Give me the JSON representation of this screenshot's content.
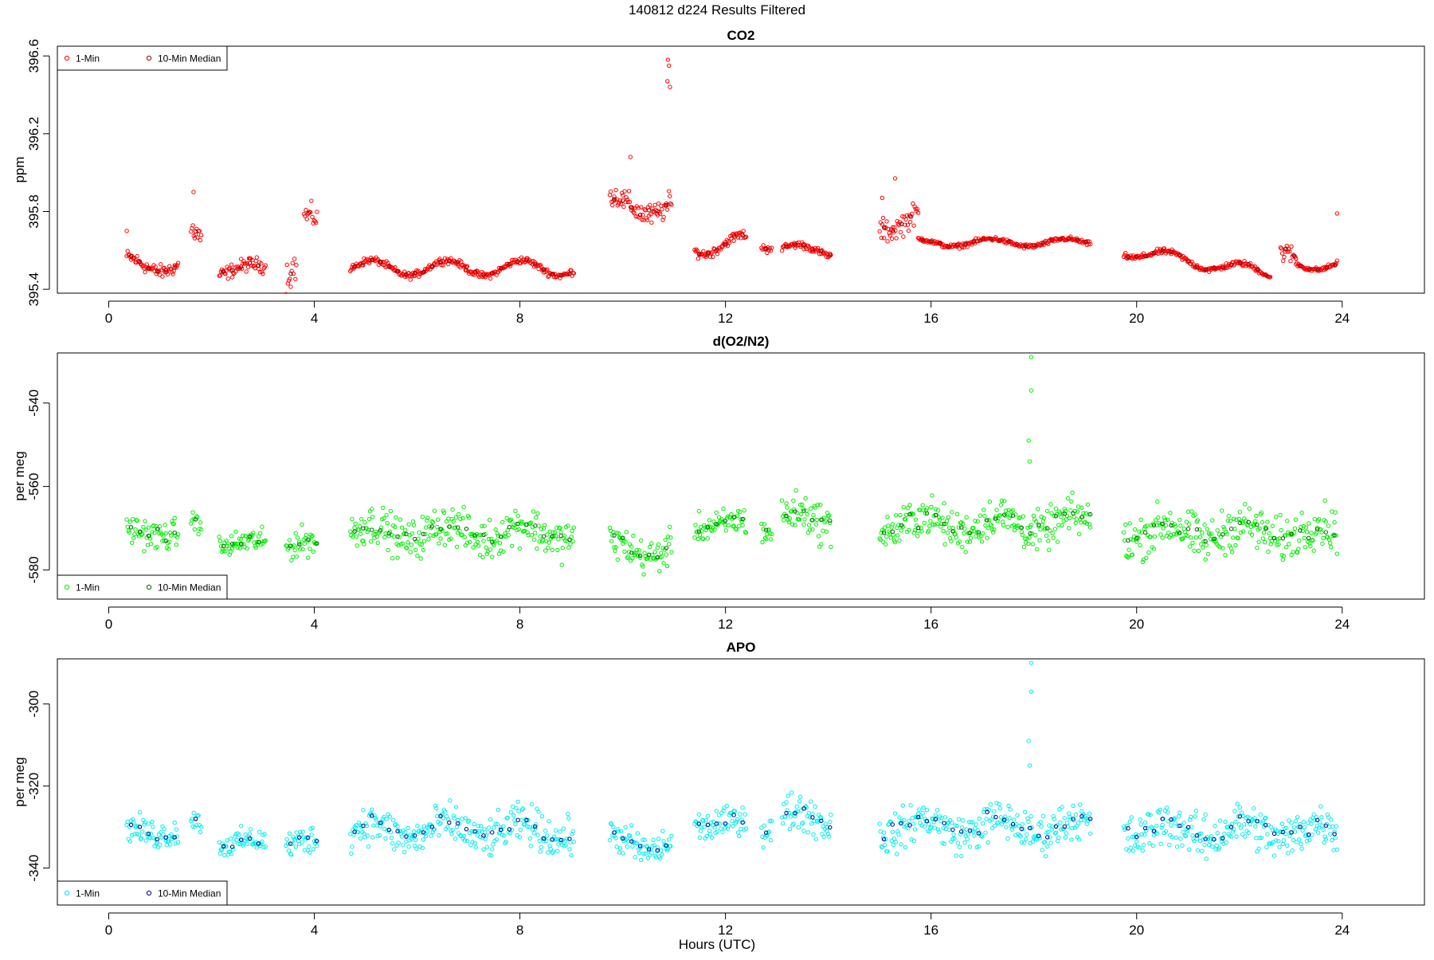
{
  "suptitle": "140812   d224   Results Filtered",
  "xlabel": "Hours (UTC)",
  "chart_data": [
    {
      "type": "scatter",
      "title": "CO2",
      "ylabel": "ppm",
      "xlim": [
        -1,
        25.6
      ],
      "ylim": [
        395.38,
        396.65
      ],
      "x_ticks": [
        0,
        4,
        8,
        12,
        16,
        20,
        24
      ],
      "y_ticks": [
        395.4,
        395.8,
        396.2,
        396.6
      ],
      "y_tick_labels": [
        "395.4",
        "395.8",
        "396.2",
        "396.6"
      ],
      "legend": {
        "position": "top-left",
        "entries": [
          "1-Min",
          "10-Min Median"
        ]
      },
      "colors": {
        "one_min": "#ff0000",
        "median": "#8b0000"
      },
      "series": [
        {
          "name": "1-Min",
          "segments": [
            {
              "x0": 0.35,
              "x1": 1.35,
              "base": 395.53,
              "amp": 0.04,
              "noise": 0.03,
              "spikes": [
                [
                  0.35,
                  395.7
                ]
              ]
            },
            {
              "x0": 1.6,
              "x1": 1.8,
              "base": 395.66,
              "amp": 0.06,
              "noise": 0.05,
              "spikes": [
                [
                  1.65,
                  395.9
                ]
              ]
            },
            {
              "x0": 2.15,
              "x1": 3.05,
              "base": 395.5,
              "amp": 0.03,
              "noise": 0.03
            },
            {
              "x0": 3.45,
              "x1": 3.65,
              "base": 395.5,
              "amp": 0.06,
              "noise": 0.07
            },
            {
              "x0": 3.8,
              "x1": 4.05,
              "base": 395.73,
              "amp": 0.05,
              "noise": 0.05
            },
            {
              "x0": 4.7,
              "x1": 9.05,
              "base": 395.51,
              "amp": 0.04,
              "noise": 0.015
            },
            {
              "x0": 9.75,
              "x1": 10.95,
              "base": 395.83,
              "amp": 0.05,
              "noise": 0.05,
              "spikes": [
                [
                  10.88,
                  396.58
                ],
                [
                  10.9,
                  396.55
                ],
                [
                  10.87,
                  396.47
                ],
                [
                  10.92,
                  396.44
                ],
                [
                  10.15,
                  396.08
                ]
              ]
            },
            {
              "x0": 11.4,
              "x1": 12.4,
              "base": 395.63,
              "amp": 0.05,
              "noise": 0.02
            },
            {
              "x0": 12.7,
              "x1": 12.9,
              "base": 395.64,
              "amp": 0.03,
              "noise": 0.02
            },
            {
              "x0": 13.1,
              "x1": 14.05,
              "base": 395.6,
              "amp": 0.03,
              "noise": 0.015
            },
            {
              "x0": 15.0,
              "x1": 15.75,
              "base": 395.75,
              "amp": 0.05,
              "noise": 0.05,
              "spikes": [
                [
                  15.05,
                  395.87
                ],
                [
                  15.3,
                  395.97
                ]
              ]
            },
            {
              "x0": 15.75,
              "x1": 19.1,
              "base": 395.64,
              "amp": 0.02,
              "noise": 0.01
            },
            {
              "x0": 19.75,
              "x1": 22.6,
              "base": 395.6,
              "amp": 0.03,
              "noise": 0.012,
              "trend": -0.12
            },
            {
              "x0": 22.8,
              "x1": 23.1,
              "base": 395.55,
              "amp": 0.04,
              "noise": 0.04
            },
            {
              "x0": 23.1,
              "x1": 23.9,
              "base": 395.53,
              "amp": 0.03,
              "noise": 0.01,
              "spikes": [
                [
                  23.9,
                  395.79
                ]
              ]
            }
          ]
        },
        {
          "name": "10-Min Median",
          "segments": []
        }
      ]
    },
    {
      "type": "scatter",
      "title": "d(O2/N2)",
      "ylabel": "per meg",
      "xlim": [
        -1,
        25.6
      ],
      "ylim": [
        -587,
        -528
      ],
      "x_ticks": [
        0,
        4,
        8,
        12,
        16,
        20,
        24
      ],
      "y_ticks": [
        -540,
        -560,
        -580
      ],
      "y_tick_labels": [
        "-540",
        "-560",
        "-580"
      ],
      "legend": {
        "position": "bottom-left",
        "entries": [
          "1-Min",
          "10-Min Median"
        ]
      },
      "colors": {
        "one_min": "#00ee00",
        "median": "#006400"
      },
      "series": [
        {
          "name": "1-Min",
          "segments": [
            {
              "x0": 0.35,
              "x1": 1.35,
              "base": -571,
              "amp": 1,
              "noise": 3
            },
            {
              "x0": 1.6,
              "x1": 1.8,
              "base": -569,
              "amp": 1,
              "noise": 2
            },
            {
              "x0": 2.15,
              "x1": 3.05,
              "base": -574,
              "amp": 1,
              "noise": 2.5
            },
            {
              "x0": 3.45,
              "x1": 4.05,
              "base": -574,
              "amp": 1,
              "noise": 3
            },
            {
              "x0": 4.7,
              "x1": 9.05,
              "base": -571,
              "amp": 2,
              "noise": 4
            },
            {
              "x0": 9.75,
              "x1": 10.95,
              "base": -575,
              "amp": 2,
              "noise": 3.5
            },
            {
              "x0": 11.4,
              "x1": 12.4,
              "base": -569,
              "amp": 1,
              "noise": 3
            },
            {
              "x0": 12.7,
              "x1": 12.9,
              "base": -570,
              "amp": 1,
              "noise": 3
            },
            {
              "x0": 13.1,
              "x1": 14.05,
              "base": -568,
              "amp": 2,
              "noise": 4
            },
            {
              "x0": 15.0,
              "x1": 19.1,
              "base": -569,
              "amp": 2,
              "noise": 4,
              "spikes": [
                [
                  17.95,
                  -529
                ],
                [
                  17.95,
                  -537
                ],
                [
                  17.9,
                  -549
                ],
                [
                  17.92,
                  -554
                ]
              ]
            },
            {
              "x0": 19.75,
              "x1": 23.9,
              "base": -571,
              "amp": 2,
              "noise": 4.5
            }
          ]
        },
        {
          "name": "10-Min Median",
          "segments": []
        }
      ]
    },
    {
      "type": "scatter",
      "title": "APO",
      "ylabel": "per meg",
      "xlim": [
        -1,
        25.6
      ],
      "ylim": [
        -349,
        -289
      ],
      "x_ticks": [
        0,
        4,
        8,
        12,
        16,
        20,
        24
      ],
      "y_ticks": [
        -300,
        -320,
        -340
      ],
      "y_tick_labels": [
        "-300",
        "-320",
        "-340"
      ],
      "legend": {
        "position": "bottom-left",
        "entries": [
          "1-Min",
          "10-Min Median"
        ]
      },
      "colors": {
        "one_min": "#00eeee",
        "median": "#00008b"
      },
      "series": [
        {
          "name": "1-Min",
          "segments": [
            {
              "x0": 0.35,
              "x1": 1.35,
              "base": -331,
              "amp": 1,
              "noise": 3
            },
            {
              "x0": 1.6,
              "x1": 1.8,
              "base": -329,
              "amp": 1,
              "noise": 2
            },
            {
              "x0": 2.15,
              "x1": 3.05,
              "base": -334,
              "amp": 1,
              "noise": 2.5
            },
            {
              "x0": 3.45,
              "x1": 4.05,
              "base": -334,
              "amp": 1,
              "noise": 3
            },
            {
              "x0": 4.7,
              "x1": 9.05,
              "base": -331,
              "amp": 2,
              "noise": 4
            },
            {
              "x0": 9.75,
              "x1": 10.95,
              "base": -334,
              "amp": 2,
              "noise": 3.5
            },
            {
              "x0": 11.4,
              "x1": 12.4,
              "base": -329,
              "amp": 1,
              "noise": 3
            },
            {
              "x0": 12.7,
              "x1": 12.9,
              "base": -330,
              "amp": 1,
              "noise": 3
            },
            {
              "x0": 13.1,
              "x1": 14.05,
              "base": -328,
              "amp": 2,
              "noise": 4
            },
            {
              "x0": 15.0,
              "x1": 19.1,
              "base": -330,
              "amp": 2,
              "noise": 4,
              "spikes": [
                [
                  17.95,
                  -290
                ],
                [
                  17.95,
                  -297
                ],
                [
                  17.9,
                  -309
                ],
                [
                  17.92,
                  -315
                ]
              ]
            },
            {
              "x0": 19.75,
              "x1": 23.9,
              "base": -331,
              "amp": 2,
              "noise": 4.5
            }
          ]
        },
        {
          "name": "10-Min Median",
          "segments": []
        }
      ]
    }
  ]
}
